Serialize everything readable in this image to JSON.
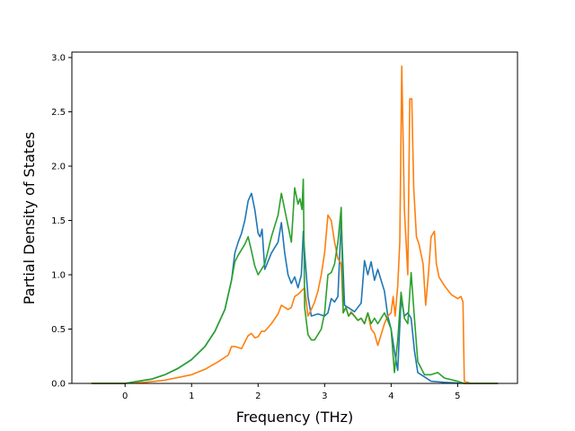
{
  "chart_data": {
    "type": "line",
    "title": "",
    "xlabel": "Frequency (THz)",
    "ylabel": "Partial Density of States",
    "xlim": [
      -0.8,
      5.9
    ],
    "ylim": [
      0.0,
      3.05
    ],
    "xticks": [
      0,
      1,
      2,
      3,
      4,
      5
    ],
    "yticks": [
      0.0,
      0.5,
      1.0,
      1.5,
      2.0,
      2.5,
      3.0
    ],
    "xtick_labels": [
      "0",
      "1",
      "2",
      "3",
      "4",
      "5"
    ],
    "ytick_labels": [
      "0.0",
      "0.5",
      "1.0",
      "1.5",
      "2.0",
      "2.5",
      "3.0"
    ],
    "grid": false,
    "legend": "none",
    "series": [
      {
        "color": "#1f77b4",
        "x": [
          -0.5,
          0.0,
          0.2,
          0.4,
          0.6,
          0.8,
          1.0,
          1.2,
          1.35,
          1.5,
          1.6,
          1.65,
          1.7,
          1.75,
          1.8,
          1.85,
          1.9,
          1.95,
          2.0,
          2.03,
          2.06,
          2.1,
          2.2,
          2.3,
          2.35,
          2.4,
          2.45,
          2.5,
          2.55,
          2.6,
          2.65,
          2.68,
          2.7,
          2.75,
          2.8,
          2.9,
          3.0,
          3.05,
          3.1,
          3.15,
          3.2,
          3.25,
          3.3,
          3.35,
          3.4,
          3.45,
          3.5,
          3.55,
          3.6,
          3.65,
          3.7,
          3.75,
          3.8,
          3.85,
          3.9,
          3.95,
          4.0,
          4.05,
          4.1,
          4.15,
          4.2,
          4.25,
          4.3,
          4.35,
          4.4,
          4.5,
          4.6,
          4.8,
          5.1,
          5.6
        ],
        "y": [
          0.0,
          0.0,
          0.02,
          0.04,
          0.08,
          0.14,
          0.22,
          0.34,
          0.48,
          0.68,
          0.95,
          1.2,
          1.3,
          1.38,
          1.5,
          1.68,
          1.75,
          1.6,
          1.38,
          1.35,
          1.42,
          1.05,
          1.2,
          1.3,
          1.48,
          1.2,
          1.0,
          0.92,
          0.98,
          0.88,
          1.0,
          1.4,
          1.2,
          0.8,
          0.62,
          0.64,
          0.62,
          0.65,
          0.78,
          0.75,
          0.8,
          1.5,
          0.72,
          0.7,
          0.68,
          0.66,
          0.7,
          0.74,
          1.13,
          1.0,
          1.12,
          0.95,
          1.05,
          0.95,
          0.85,
          0.62,
          0.5,
          0.3,
          0.12,
          0.78,
          0.62,
          0.65,
          0.6,
          0.3,
          0.1,
          0.06,
          0.02,
          0.01,
          0.0,
          0.0
        ]
      },
      {
        "color": "#ff7f0e",
        "x": [
          -0.5,
          0.0,
          0.3,
          0.6,
          1.0,
          1.2,
          1.4,
          1.55,
          1.6,
          1.65,
          1.75,
          1.8,
          1.85,
          1.9,
          1.95,
          2.0,
          2.05,
          2.1,
          2.2,
          2.3,
          2.35,
          2.4,
          2.45,
          2.5,
          2.55,
          2.6,
          2.65,
          2.7,
          2.75,
          2.8,
          2.85,
          2.9,
          2.95,
          3.0,
          3.05,
          3.1,
          3.15,
          3.2,
          3.25,
          3.28,
          3.32,
          3.36,
          3.4,
          3.45,
          3.5,
          3.55,
          3.6,
          3.65,
          3.7,
          3.75,
          3.8,
          3.85,
          3.9,
          3.95,
          4.0,
          4.03,
          4.06,
          4.1,
          4.13,
          4.16,
          4.2,
          4.25,
          4.28,
          4.31,
          4.34,
          4.38,
          4.42,
          4.48,
          4.52,
          4.56,
          4.6,
          4.65,
          4.68,
          4.72,
          4.8,
          4.9,
          5.0,
          5.05,
          5.08,
          5.1,
          5.2,
          5.6
        ],
        "y": [
          0.0,
          0.0,
          0.01,
          0.03,
          0.08,
          0.13,
          0.2,
          0.26,
          0.34,
          0.34,
          0.32,
          0.38,
          0.44,
          0.46,
          0.42,
          0.43,
          0.48,
          0.48,
          0.55,
          0.64,
          0.72,
          0.7,
          0.68,
          0.7,
          0.8,
          0.82,
          0.85,
          0.88,
          0.62,
          0.68,
          0.75,
          0.85,
          1.0,
          1.2,
          1.55,
          1.5,
          1.3,
          1.15,
          1.1,
          0.65,
          0.7,
          0.62,
          0.66,
          0.62,
          0.58,
          0.6,
          0.55,
          0.65,
          0.5,
          0.46,
          0.35,
          0.45,
          0.55,
          0.62,
          0.65,
          0.8,
          0.62,
          0.9,
          1.3,
          2.92,
          1.6,
          1.0,
          2.62,
          2.62,
          1.8,
          1.35,
          1.28,
          1.1,
          0.72,
          1.0,
          1.35,
          1.4,
          1.1,
          0.98,
          0.9,
          0.82,
          0.78,
          0.8,
          0.75,
          0.02,
          0.0,
          0.0
        ]
      },
      {
        "color": "#2ca02c",
        "x": [
          -0.5,
          0.0,
          0.2,
          0.4,
          0.6,
          0.8,
          1.0,
          1.2,
          1.35,
          1.5,
          1.6,
          1.65,
          1.7,
          1.8,
          1.85,
          1.9,
          1.95,
          2.0,
          2.05,
          2.1,
          2.2,
          2.3,
          2.35,
          2.4,
          2.45,
          2.5,
          2.55,
          2.6,
          2.63,
          2.66,
          2.68,
          2.7,
          2.75,
          2.8,
          2.85,
          2.9,
          2.95,
          3.0,
          3.05,
          3.1,
          3.15,
          3.2,
          3.25,
          3.28,
          3.32,
          3.36,
          3.4,
          3.45,
          3.5,
          3.55,
          3.6,
          3.65,
          3.7,
          3.75,
          3.8,
          3.85,
          3.9,
          3.95,
          4.0,
          4.05,
          4.1,
          4.15,
          4.2,
          4.25,
          4.3,
          4.35,
          4.4,
          4.5,
          4.6,
          4.7,
          4.8,
          5.0,
          5.1,
          5.6
        ],
        "y": [
          0.0,
          0.0,
          0.02,
          0.04,
          0.08,
          0.14,
          0.22,
          0.34,
          0.48,
          0.68,
          0.95,
          1.12,
          1.18,
          1.28,
          1.35,
          1.22,
          1.08,
          1.0,
          1.05,
          1.1,
          1.35,
          1.55,
          1.75,
          1.6,
          1.45,
          1.3,
          1.8,
          1.65,
          1.7,
          1.6,
          1.88,
          0.7,
          0.45,
          0.4,
          0.4,
          0.45,
          0.5,
          0.65,
          1.0,
          1.02,
          1.1,
          1.3,
          1.62,
          0.65,
          0.7,
          0.62,
          0.65,
          0.62,
          0.58,
          0.6,
          0.55,
          0.65,
          0.55,
          0.6,
          0.55,
          0.6,
          0.65,
          0.58,
          0.5,
          0.1,
          0.4,
          0.84,
          0.6,
          0.55,
          1.02,
          0.6,
          0.2,
          0.08,
          0.08,
          0.1,
          0.05,
          0.02,
          0.0,
          0.0
        ]
      }
    ]
  }
}
